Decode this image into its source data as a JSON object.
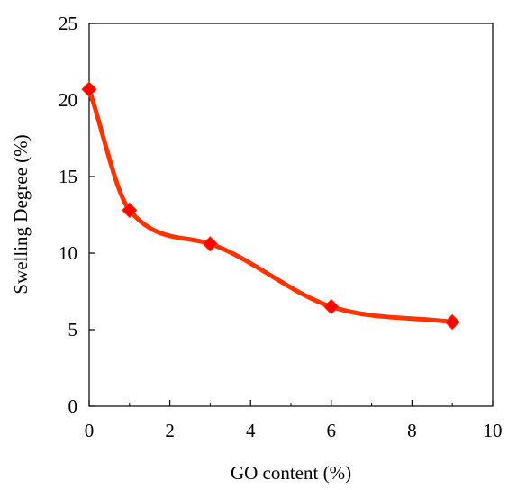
{
  "chart_data": {
    "type": "line",
    "title": "",
    "xlabel": "GO content (%)",
    "ylabel": "Swelling Degree (%)",
    "xlim": [
      0,
      10
    ],
    "ylim": [
      0,
      25
    ],
    "x_ticks": [
      0,
      2,
      4,
      6,
      8,
      10
    ],
    "y_ticks": [
      0,
      5,
      10,
      15,
      20,
      25
    ],
    "grid": false,
    "smooth": true,
    "marker": "diamond",
    "colors": {
      "line": "#ff3300",
      "marker": "#ff0000",
      "axis": "#000000"
    },
    "series": [
      {
        "x": [
          0,
          1,
          3,
          6,
          9
        ],
        "values": [
          20.7,
          12.8,
          10.6,
          6.5,
          5.5
        ]
      }
    ]
  }
}
